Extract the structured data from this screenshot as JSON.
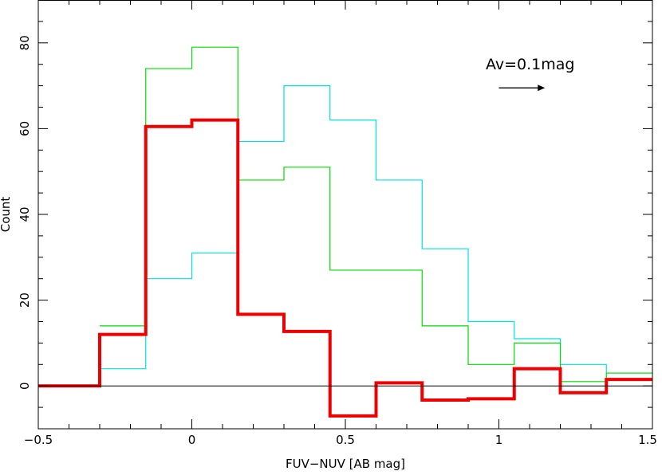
{
  "chart_data": {
    "type": "line",
    "step": true,
    "title": "",
    "xlabel": "FUV−NUV [AB mag]",
    "ylabel": "Count",
    "xlim": [
      -0.5,
      1.5
    ],
    "ylim": [
      -10,
      90
    ],
    "xticks": [
      -0.5,
      0,
      0.5,
      1,
      1.5
    ],
    "xtick_labels": [
      "−0.5",
      "0",
      "0.5",
      "1",
      "1.5"
    ],
    "yticks": [
      0,
      20,
      40,
      60,
      80
    ],
    "ytick_labels": [
      "0",
      "20",
      "40",
      "60",
      "80"
    ],
    "grid": false,
    "zero_line": true,
    "bin_edges": [
      -0.5,
      -0.3,
      -0.15,
      0,
      0.15,
      0.3,
      0.45,
      0.6,
      0.75,
      0.9,
      1.05,
      1.2,
      1.35,
      1.5
    ],
    "series": [
      {
        "color": "#00e0e0",
        "linewidth": 1.2,
        "values": [
          null,
          4,
          25,
          31,
          57,
          70,
          62,
          48,
          32,
          15,
          11,
          5,
          3
        ]
      },
      {
        "color": "#00dd00",
        "linewidth": 1.2,
        "values": [
          null,
          14,
          74,
          79,
          48,
          51,
          27,
          27,
          14,
          5,
          10,
          1,
          3
        ]
      },
      {
        "color": "#ee0000",
        "linewidth": 4,
        "values": [
          0,
          12,
          60.5,
          62,
          16.7,
          12.7,
          -7,
          0.7,
          -3.3,
          -3,
          4,
          -1.6,
          1.5
        ]
      }
    ],
    "annotations": [
      {
        "text": "Av=0.1mag",
        "arrow": true,
        "arrow_from": [
          1.0,
          69.5
        ],
        "arrow_to": [
          1.15,
          69.5
        ]
      }
    ]
  }
}
